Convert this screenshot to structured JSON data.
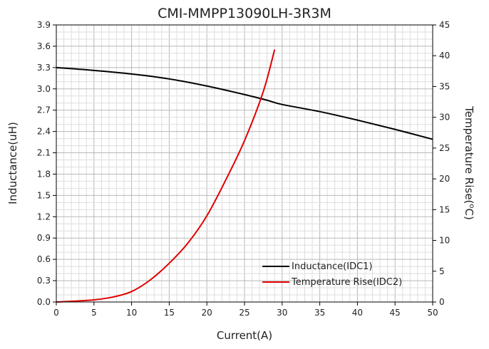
{
  "chart_data": {
    "type": "line",
    "title": "CMI-MMPP13090LH-3R3M",
    "xlabel": "Current(A)",
    "ylabel": "Inductance(uH)",
    "y2label_main": "Temperature Rise(",
    "y2label_sup": "o",
    "y2label_end": "C)",
    "xlim": [
      0,
      50
    ],
    "ylim": [
      0,
      3.9
    ],
    "y2lim": [
      0,
      45
    ],
    "x_ticks": [
      "0",
      "5",
      "10",
      "15",
      "20",
      "25",
      "30",
      "35",
      "40",
      "45",
      "50"
    ],
    "y_ticks": [
      "0.0",
      "0.3",
      "0.6",
      "0.9",
      "1.2",
      "1.5",
      "1.8",
      "2.1",
      "2.4",
      "2.7",
      "3.0",
      "3.3",
      "3.6",
      "3.9"
    ],
    "y2_ticks": [
      "0",
      "5",
      "10",
      "15",
      "20",
      "25",
      "30",
      "35",
      "40",
      "45"
    ],
    "grid": true,
    "legend_position": "bottom-right",
    "series": [
      {
        "name": "Inductance(IDC1)",
        "axis": "left",
        "color": "#000000",
        "x": [
          0,
          5,
          10,
          15,
          20,
          25,
          28,
          30,
          35,
          40,
          45,
          50
        ],
        "y": [
          3.3,
          3.26,
          3.21,
          3.14,
          3.04,
          2.92,
          2.84,
          2.78,
          2.68,
          2.56,
          2.43,
          2.29
        ]
      },
      {
        "name": "Temperature Rise(IDC2)",
        "axis": "right",
        "color": "#e00000",
        "x": [
          0,
          2.5,
          5,
          7.5,
          10,
          12.5,
          15,
          17.5,
          20,
          22.5,
          25,
          27.5,
          29
        ],
        "y": [
          0,
          0.15,
          0.35,
          0.8,
          1.7,
          3.6,
          6.3,
          9.6,
          14.0,
          19.8,
          26.2,
          34.2,
          41.0
        ]
      }
    ]
  }
}
